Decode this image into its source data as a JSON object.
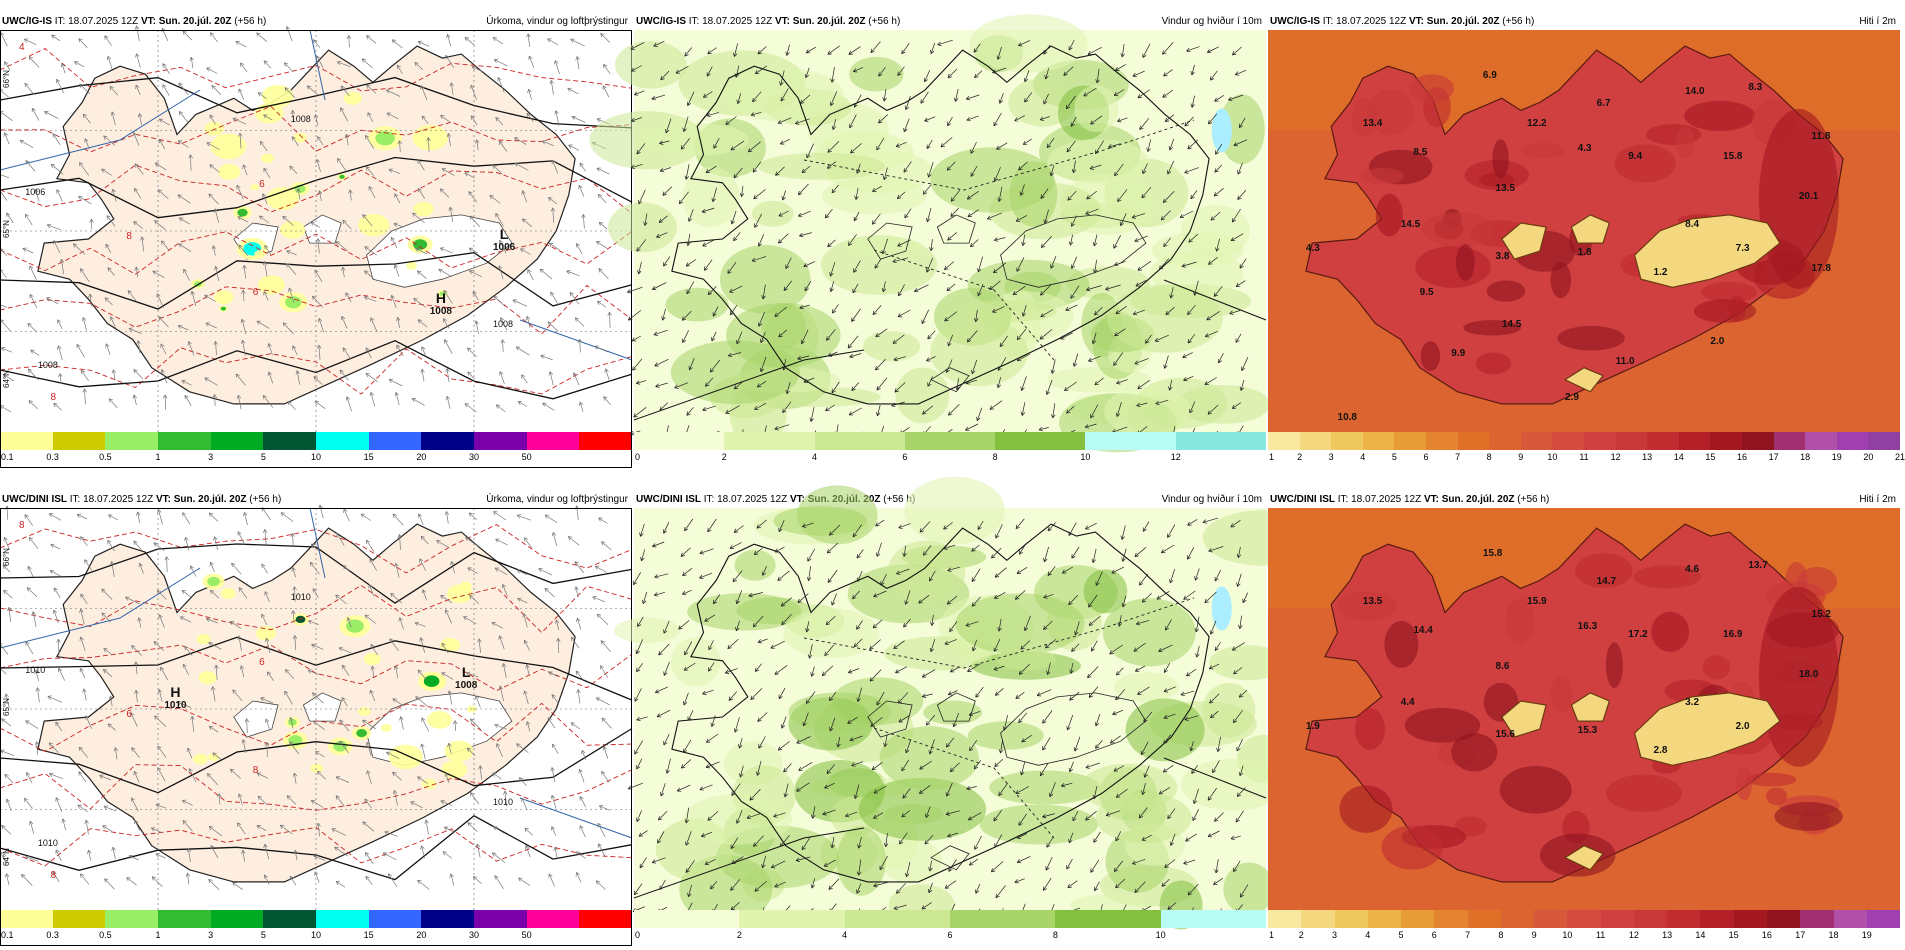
{
  "colors": {
    "precip_scale": [
      "#ffff99",
      "#cccc00",
      "#99ee66",
      "#33bb33",
      "#00aa22",
      "#005533",
      "#00ffee",
      "#3366ff",
      "#000088",
      "#7a00aa",
      "#ff0099",
      "#ff0000"
    ],
    "wind_scale": [
      "#f4fcd8",
      "#e0f4b0",
      "#cce894",
      "#a8d46a",
      "#84c040",
      "#b8fcf4",
      "#88e8e0",
      "#5cc8c4"
    ],
    "temp_scale": [
      "#f8e8a0",
      "#f4d880",
      "#f0c860",
      "#ecb448",
      "#e89c38",
      "#e48430",
      "#e07028",
      "#dc6430",
      "#d8583c",
      "#d44c40",
      "#d04040",
      "#c83838",
      "#c02c30",
      "#b42028",
      "#a41820",
      "#901420",
      "#a03070",
      "#b050a8",
      "#a040b0",
      "#9040a0"
    ],
    "land_fill": "#fdeee0",
    "contour_red": "#cc2222",
    "lake_blue": "#aaeeff"
  },
  "rows": [
    {
      "model": "UWC/IG-IS",
      "panels": [
        {
          "type": "precip",
          "model": "UWC/IG-IS",
          "it": "IT: 18.07.2025 12Z",
          "vt": "VT: Sun. 20.júl. 20Z",
          "lead": "(+56 h)",
          "title": "Úrkoma, vindur og loftþrýstingur",
          "ticks": [
            "0.1",
            "0.3",
            "0.5",
            "1",
            "3",
            "5",
            "10",
            "15",
            "20",
            "30",
            "50"
          ],
          "pressure_labels": [
            {
              "kind": "L",
              "value": "1006"
            },
            {
              "kind": "H",
              "value": "1008"
            }
          ],
          "isobar_labels": [
            "1006",
            "1008",
            "1008",
            "1008"
          ],
          "isotherm_labels": [
            "6",
            "8",
            "6",
            "8",
            "4"
          ],
          "lat_labels": [
            "66°N",
            "65°N",
            "64°N"
          ]
        },
        {
          "type": "wind",
          "model": "UWC/IG-IS",
          "it": "IT: 18.07.2025 12Z",
          "vt": "VT: Sun. 20.júl. 20Z",
          "lead": "(+56 h)",
          "title": "Vindur og hviður í 10m",
          "ticks": [
            "0",
            "2",
            "4",
            "6",
            "8",
            "10",
            "12"
          ]
        },
        {
          "type": "temp",
          "model": "UWC/IG-IS",
          "it": "IT: 18.07.2025 12Z",
          "vt": "VT: Sun. 20.júl. 20Z",
          "lead": "(+56 h)",
          "title": "Hiti í 2m",
          "ticks": [
            "1",
            "2",
            "3",
            "4",
            "5",
            "6",
            "7",
            "8",
            "9",
            "10",
            "11",
            "12",
            "13",
            "14",
            "15",
            "16",
            "17",
            "18",
            "19",
            "20",
            "21"
          ],
          "labels": [
            "6.9",
            "6.7",
            "14.0",
            "8.3",
            "13.4",
            "12.2",
            "8.5",
            "4.3",
            "9.4",
            "15.8",
            "11.8",
            "13.5",
            "20.1",
            "14.5",
            "8.4",
            "4.3",
            "3.8",
            "1.8",
            "7.3",
            "1.2",
            "17.8",
            "9.5",
            "14.5",
            "2.0",
            "9.9",
            "11.0",
            "2.9",
            "10.8"
          ]
        }
      ]
    },
    {
      "model": "UWC/DINI ISL",
      "panels": [
        {
          "type": "precip",
          "model": "UWC/DINI ISL",
          "it": "IT: 18.07.2025 12Z",
          "vt": "VT: Sun. 20.júl. 20Z",
          "lead": "(+56 h)",
          "title": "Úrkoma, vindur og loftþrýstingur",
          "ticks": [
            "0.1",
            "0.3",
            "0.5",
            "1",
            "3",
            "5",
            "10",
            "15",
            "20",
            "30",
            "50"
          ],
          "pressure_labels": [
            {
              "kind": "H",
              "value": "1010"
            },
            {
              "kind": "L",
              "value": "1008"
            }
          ],
          "isobar_labels": [
            "1010",
            "1010",
            "1010",
            "1010"
          ],
          "isotherm_labels": [
            "6",
            "8",
            "8",
            "6",
            "8"
          ],
          "lat_labels": [
            "66°N",
            "65°N",
            "64°N"
          ]
        },
        {
          "type": "wind",
          "model": "UWC/DINI ISL",
          "it": "IT: 18.07.2025 12Z",
          "vt": "VT: Sun. 20.júl. 20Z",
          "lead": "(+56 h)",
          "title": "Vindur og hviður í 10m",
          "ticks": [
            "0",
            "2",
            "4",
            "6",
            "8",
            "10"
          ]
        },
        {
          "type": "temp",
          "model": "UWC/DINI ISL",
          "it": "IT: 18.07.2025 12Z",
          "vt": "VT: Sun. 20.júl. 20Z",
          "lead": "(+56 h)",
          "title": "Hiti í 2m",
          "ticks": [
            "1",
            "2",
            "3",
            "4",
            "5",
            "6",
            "7",
            "8",
            "9",
            "10",
            "11",
            "12",
            "13",
            "14",
            "15",
            "16",
            "17",
            "18",
            "19"
          ],
          "labels": [
            "15.8",
            "14.7",
            "4.6",
            "13.7",
            "13.5",
            "15.9",
            "14.4",
            "16.3",
            "17.2",
            "16.9",
            "15.2",
            "8.6",
            "18.0",
            "4.4",
            "3.2",
            "1.9",
            "15.6",
            "15.3",
            "2.0",
            "2.8"
          ]
        }
      ]
    }
  ]
}
